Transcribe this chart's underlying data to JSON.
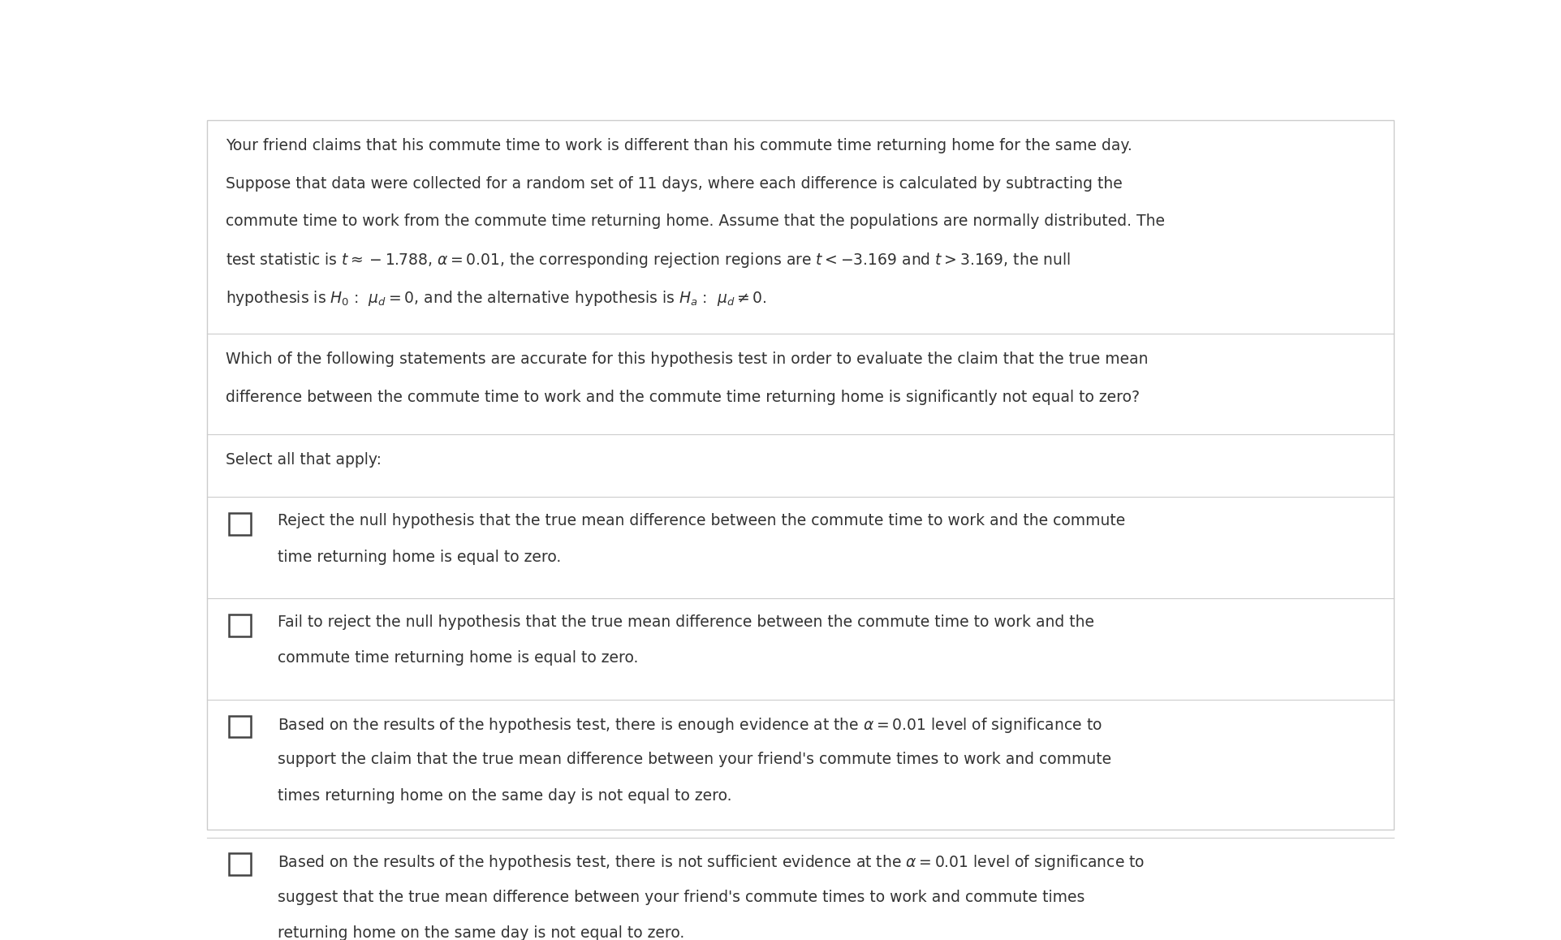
{
  "bg_color": "#ffffff",
  "text_color": "#333333",
  "border_color": "#cccccc",
  "font_size_body": 13.5,
  "select_label": "Select all that apply:",
  "p1_lines": [
    "Your friend claims that his commute time to work is different than his commute time returning home for the same day.",
    "Suppose that data were collected for a random set of 11 days, where each difference is calculated by subtracting the",
    "commute time to work from the commute time returning home. Assume that the populations are normally distributed. The",
    "test statistic is $t \\approx -1.788$, $\\alpha = 0.01$, the corresponding rejection regions are $t < -3.169$ and $t > 3.169$, the null",
    "hypothesis is $H_0$ :  $\\mu_d = 0$, and the alternative hypothesis is $H_a$ :  $\\mu_d \\neq 0$."
  ],
  "p2_lines": [
    "Which of the following statements are accurate for this hypothesis test in order to evaluate the claim that the true mean",
    "difference between the commute time to work and the commute time returning home is significantly not equal to zero?"
  ],
  "options": [
    [
      "Reject the null hypothesis that the true mean difference between the commute time to work and the commute",
      "time returning home is equal to zero."
    ],
    [
      "Fail to reject the null hypothesis that the true mean difference between the commute time to work and the",
      "commute time returning home is equal to zero."
    ],
    [
      "Based on the results of the hypothesis test, there is enough evidence at the $\\alpha = 0.01$ level of significance to",
      "support the claim that the true mean difference between your friend's commute times to work and commute",
      "times returning home on the same day is not equal to zero."
    ],
    [
      "Based on the results of the hypothesis test, there is not sufficient evidence at the $\\alpha = 0.01$ level of significance to",
      "suggest that the true mean difference between your friend's commute times to work and commute times",
      "returning home on the same day is not equal to zero."
    ]
  ]
}
